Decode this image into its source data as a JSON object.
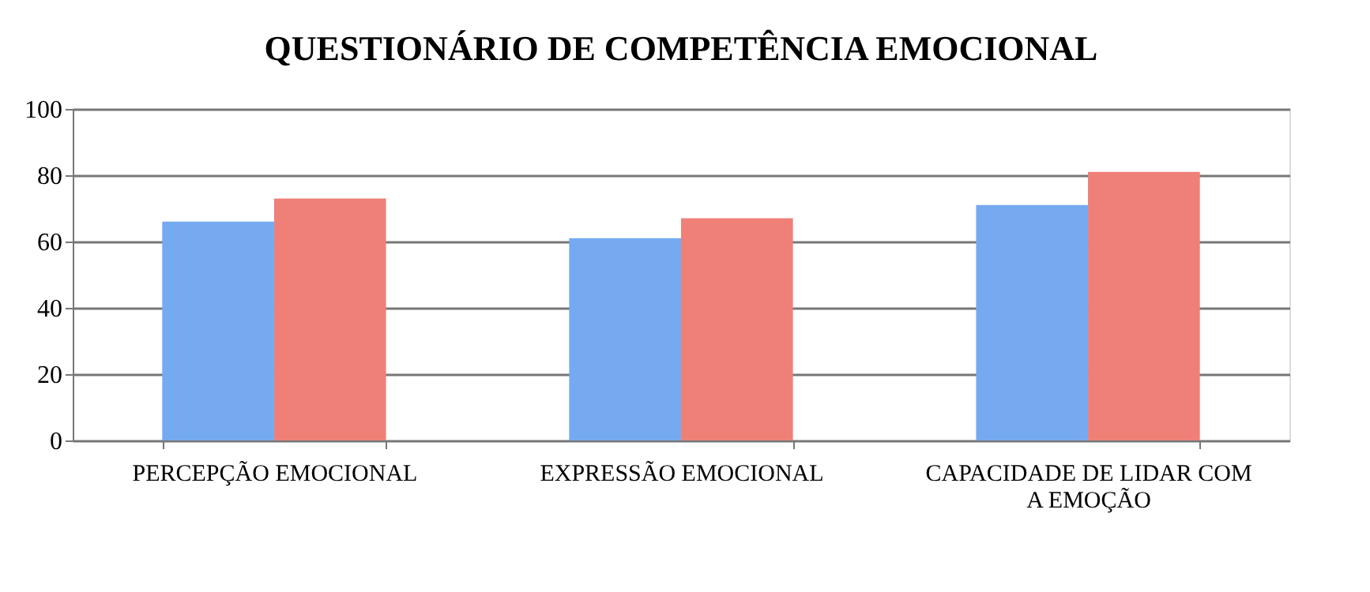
{
  "chart_data": {
    "type": "bar",
    "title": "QUESTIONÁRIO DE COMPETÊNCIA EMOCIONAL",
    "categories": [
      "PERCEPÇÃO EMOCIONAL",
      "EXPRESSÃO EMOCIONAL",
      "CAPACIDADE DE LIDAR COM A EMOÇÃO"
    ],
    "series": [
      {
        "color": "#76aaf0",
        "values": [
          66,
          61,
          71
        ]
      },
      {
        "color": "#ee8078",
        "values": [
          73,
          67,
          81
        ]
      }
    ],
    "ylim": [
      0,
      100
    ],
    "yticks": [
      0,
      20,
      40,
      60,
      80,
      100
    ],
    "grid": "y",
    "legend": false
  }
}
